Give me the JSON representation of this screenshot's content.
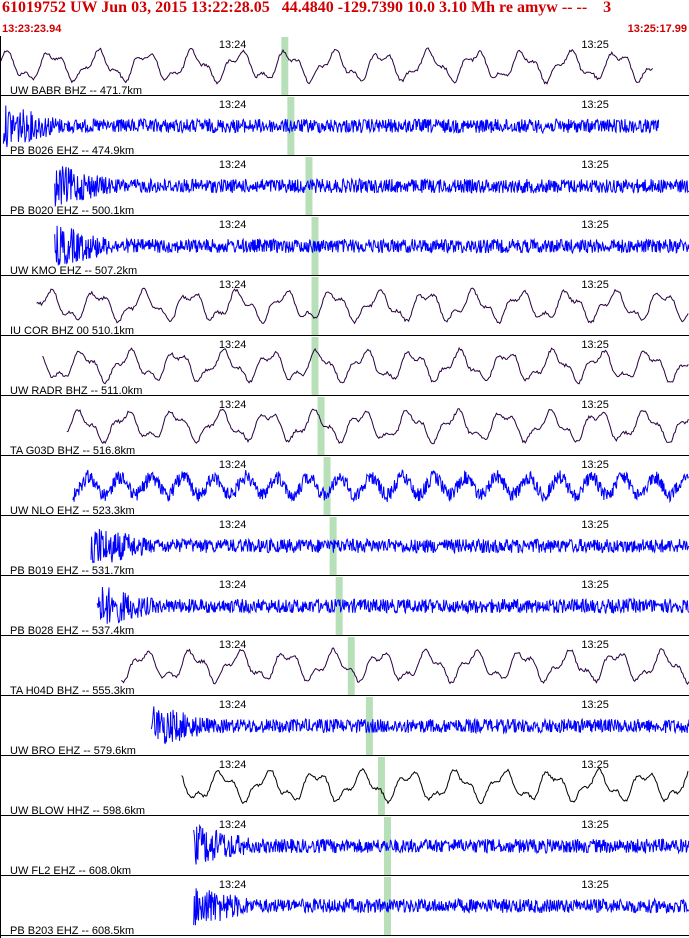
{
  "header": {
    "title": "61019752 UW Jun 03, 2015 13:22:28.05   44.4840 -129.7390 10.0 3.10 Mh re amyw -- --    3",
    "start_time": "13:23:23.94",
    "end_time": "13:25:17.99"
  },
  "colors": {
    "header_text": "#d00000",
    "phase_marker": "#b8e0b8",
    "blue_trace": "#0000ff",
    "purple_trace": "#280040",
    "black_trace": "#000000"
  },
  "chart_data": {
    "type": "line",
    "title": "61019752 UW Jun 03, 2015 13:22:28.05   44.4840 -129.7390 10.0 3.10 Mh re amyw -- --    3",
    "x_range": [
      "13:23:23.94",
      "13:25:17.99"
    ],
    "tick_labels": [
      "13:24",
      "13:25"
    ],
    "tick_times": [
      "13:24:00",
      "13:25:00"
    ],
    "traces": [
      {
        "label": "UW BABR BHZ -- 471.7km",
        "color": "#280040",
        "style": "long",
        "start": "13:23:23.9",
        "end": "13:25:12",
        "marker": "13:24:11"
      },
      {
        "label": "PB B026 EHZ -- 474.9km",
        "color": "#0000ff",
        "style": "noise",
        "start": "13:23:24.5",
        "end": "13:25:13",
        "marker": "13:24:12"
      },
      {
        "label": "PB B020 EHZ -- 500.1km",
        "color": "#0000ff",
        "style": "noise",
        "start": "13:23:33",
        "end": "13:25:18",
        "marker": "13:24:15"
      },
      {
        "label": "UW KMO EHZ -- 507.2km",
        "color": "#0000ff",
        "style": "noise",
        "start": "13:23:33",
        "end": "13:25:18",
        "marker": "13:24:16"
      },
      {
        "label": "IU COR BHZ 00 510.1km",
        "color": "#280040",
        "style": "long",
        "start": "13:23:30",
        "end": "13:25:18",
        "marker": "13:24:16"
      },
      {
        "label": "UW RADR BHZ -- 511.0km",
        "color": "#280040",
        "style": "long",
        "start": "13:23:31",
        "end": "13:25:18",
        "marker": "13:24:16"
      },
      {
        "label": "TA G03D BHZ -- 516.8km",
        "color": "#280040",
        "style": "long",
        "start": "13:23:35",
        "end": "13:25:18",
        "marker": "13:24:17"
      },
      {
        "label": "UW NLO EHZ -- 523.3km",
        "color": "#0000ff",
        "style": "mixed",
        "start": "13:23:36",
        "end": "13:25:18",
        "marker": "13:24:18"
      },
      {
        "label": "PB B019 EHZ -- 531.7km",
        "color": "#0000ff",
        "style": "noise",
        "start": "13:23:39",
        "end": "13:25:18",
        "marker": "13:24:19"
      },
      {
        "label": "PB B028 EHZ -- 537.4km",
        "color": "#0000ff",
        "style": "noise",
        "start": "13:23:40",
        "end": "13:25:18",
        "marker": "13:24:20"
      },
      {
        "label": "TA H04D BHZ -- 555.3km",
        "color": "#280040",
        "style": "long",
        "start": "13:23:44",
        "end": "13:25:18",
        "marker": "13:24:22"
      },
      {
        "label": "UW BRO EHZ -- 579.6km",
        "color": "#0000ff",
        "style": "noise",
        "start": "13:23:49",
        "end": "13:25:18",
        "marker": "13:24:25"
      },
      {
        "label": "UW BLOW HHZ -- 598.6km",
        "color": "#000000",
        "style": "long",
        "start": "13:23:54",
        "end": "13:25:18",
        "marker": "13:24:27"
      },
      {
        "label": "UW FL2 EHZ -- 608.0km",
        "color": "#0000ff",
        "style": "noise",
        "start": "13:23:56",
        "end": "13:25:18",
        "marker": "13:24:28"
      },
      {
        "label": "PB B203 EHZ -- 608.5km",
        "color": "#0000ff",
        "style": "noise",
        "start": "13:23:56",
        "end": "13:25:18",
        "marker": "13:24:28"
      }
    ]
  }
}
